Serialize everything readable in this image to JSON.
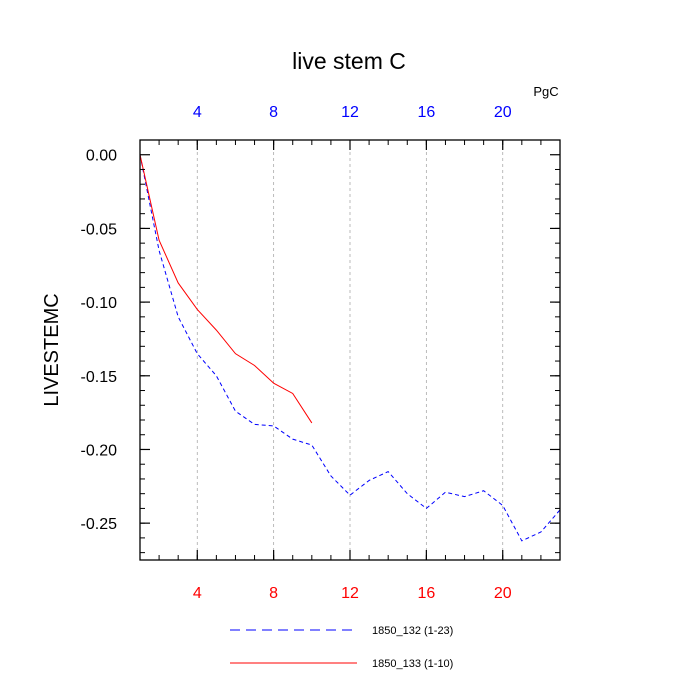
{
  "chart_data": {
    "type": "line",
    "title": "live stem C",
    "ylabel": "LIVESTEMC",
    "units": "PgC",
    "xlim": [
      1,
      23
    ],
    "ylim": [
      -0.275,
      0.01
    ],
    "x_ticks": [
      4,
      8,
      12,
      16,
      20
    ],
    "y_ticks": [
      0.0,
      -0.05,
      -0.1,
      -0.15,
      -0.2,
      -0.25
    ],
    "y_tick_labels": [
      "0.00",
      "-0.05",
      "-0.10",
      "-0.15",
      "-0.20",
      "-0.25"
    ],
    "grid": "vertical dashed",
    "colors": {
      "bottom_ticks": "#ff0000",
      "top_ticks": "#0000ff"
    },
    "series": [
      {
        "name": "1850_132 (1-23)",
        "color": "#0000ff",
        "style": "dashed",
        "x": [
          1,
          2,
          3,
          4,
          5,
          6,
          7,
          8,
          9,
          10,
          11,
          12,
          13,
          14,
          15,
          16,
          17,
          18,
          19,
          20,
          21,
          22,
          23
        ],
        "values": [
          0.0,
          -0.065,
          -0.11,
          -0.135,
          -0.15,
          -0.174,
          -0.183,
          -0.184,
          -0.193,
          -0.197,
          -0.218,
          -0.231,
          -0.221,
          -0.215,
          -0.23,
          -0.24,
          -0.229,
          -0.232,
          -0.228,
          -0.238,
          -0.262,
          -0.256,
          -0.241
        ]
      },
      {
        "name": "1850_133 (1-10)",
        "color": "#ff0000",
        "style": "solid",
        "x": [
          1,
          2,
          3,
          4,
          5,
          6,
          7,
          8,
          9,
          10
        ],
        "values": [
          0.0,
          -0.058,
          -0.087,
          -0.105,
          -0.119,
          -0.135,
          -0.143,
          -0.155,
          -0.162,
          -0.182
        ]
      }
    ]
  }
}
